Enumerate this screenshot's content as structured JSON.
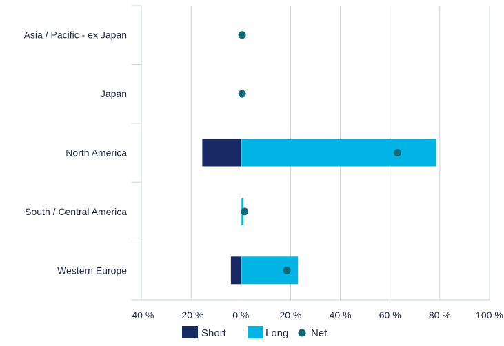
{
  "chart_data": {
    "type": "bar",
    "orientation": "horizontal",
    "stacked": true,
    "categories": [
      "Asia / Pacific - ex Japan",
      "Japan",
      "North America",
      "South / Central America",
      "Western Europe"
    ],
    "series": [
      {
        "name": "Short",
        "kind": "bar",
        "color": "#172a66",
        "values": [
          0,
          0,
          -15.5,
          0,
          -4
        ]
      },
      {
        "name": "Long",
        "kind": "bar",
        "color": "#00b4e6",
        "values": [
          0,
          0,
          78.5,
          1,
          23
        ]
      },
      {
        "name": "Net",
        "kind": "dot",
        "color": "#0e6b7a",
        "values": [
          0.5,
          0.5,
          63,
          1.5,
          18.5
        ]
      }
    ],
    "xlim": [
      -40,
      100
    ],
    "xticks": [
      -40,
      -20,
      0,
      20,
      40,
      60,
      80,
      100
    ],
    "tick_labels": [
      "-40 %",
      "-20 %",
      "0 %",
      "20 %",
      "40 %",
      "60 %",
      "80 %",
      "100 %"
    ],
    "grid": true,
    "legend": {
      "position": "bottom",
      "items": [
        "Short",
        "Long",
        "Net"
      ]
    }
  }
}
